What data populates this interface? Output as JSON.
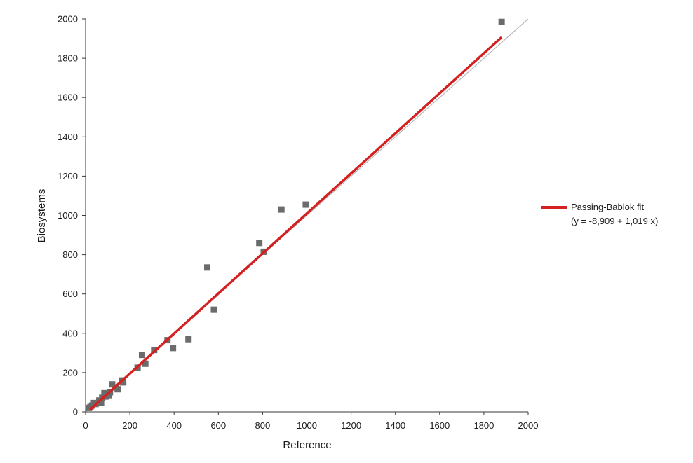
{
  "chart_data": {
    "type": "scatter",
    "xlabel": "Reference",
    "ylabel": "Biosystems",
    "xlim": [
      0,
      2000
    ],
    "ylim": [
      0,
      2000
    ],
    "xticks": [
      0,
      200,
      400,
      600,
      800,
      1000,
      1200,
      1400,
      1600,
      1800,
      2000
    ],
    "yticks": [
      0,
      200,
      400,
      600,
      800,
      1000,
      1200,
      1400,
      1600,
      1800,
      2000
    ],
    "grid": false,
    "legend_position": "right",
    "points": [
      [
        15,
        20
      ],
      [
        22,
        25
      ],
      [
        30,
        32
      ],
      [
        38,
        45
      ],
      [
        45,
        40
      ],
      [
        62,
        58
      ],
      [
        70,
        48
      ],
      [
        75,
        72
      ],
      [
        85,
        95
      ],
      [
        90,
        78
      ],
      [
        100,
        90
      ],
      [
        105,
        85
      ],
      [
        110,
        100
      ],
      [
        120,
        140
      ],
      [
        135,
        125
      ],
      [
        145,
        115
      ],
      [
        165,
        160
      ],
      [
        170,
        150
      ],
      [
        235,
        225
      ],
      [
        255,
        290
      ],
      [
        270,
        245
      ],
      [
        310,
        315
      ],
      [
        370,
        365
      ],
      [
        395,
        325
      ],
      [
        465,
        370
      ],
      [
        550,
        735
      ],
      [
        580,
        520
      ],
      [
        785,
        860
      ],
      [
        805,
        815
      ],
      [
        885,
        1030
      ],
      [
        995,
        1055
      ],
      [
        1880,
        1985
      ]
    ],
    "marker_color": "#6b6b6b",
    "fit_line": {
      "name": "Passing-Bablok fit",
      "equation": "(y = -8,909 + 1,019 x)",
      "intercept": -8.909,
      "slope": 1.019,
      "x_range": [
        20,
        1880
      ],
      "color": "#d42020"
    },
    "identity_line": {
      "x_range": [
        0,
        2000
      ],
      "color": "#b8b8b8"
    }
  }
}
